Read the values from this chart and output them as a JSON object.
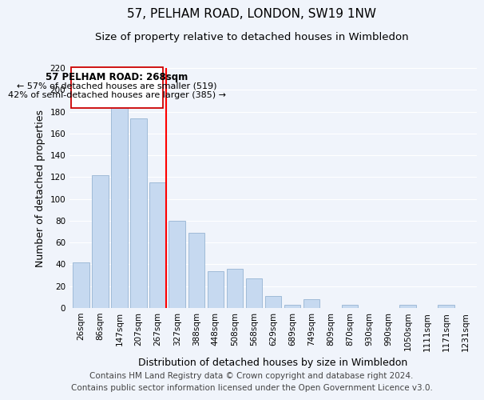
{
  "title": "57, PELHAM ROAD, LONDON, SW19 1NW",
  "subtitle": "Size of property relative to detached houses in Wimbledon",
  "xlabel": "Distribution of detached houses by size in Wimbledon",
  "ylabel": "Number of detached properties",
  "categories": [
    "26sqm",
    "86sqm",
    "147sqm",
    "207sqm",
    "267sqm",
    "327sqm",
    "388sqm",
    "448sqm",
    "508sqm",
    "568sqm",
    "629sqm",
    "689sqm",
    "749sqm",
    "809sqm",
    "870sqm",
    "930sqm",
    "990sqm",
    "1050sqm",
    "1111sqm",
    "1171sqm",
    "1231sqm"
  ],
  "values": [
    42,
    122,
    184,
    174,
    115,
    80,
    69,
    34,
    36,
    27,
    11,
    3,
    8,
    0,
    3,
    0,
    0,
    3,
    0,
    3,
    0
  ],
  "bar_color": "#c6d9f0",
  "bar_edge_color": "#a0bbd8",
  "red_line_index": 4,
  "annotation_title": "57 PELHAM ROAD: 268sqm",
  "annotation_line1": "← 57% of detached houses are smaller (519)",
  "annotation_line2": "42% of semi-detached houses are larger (385) →",
  "ylim": [
    0,
    220
  ],
  "yticks": [
    0,
    20,
    40,
    60,
    80,
    100,
    120,
    140,
    160,
    180,
    200,
    220
  ],
  "footer1": "Contains HM Land Registry data © Crown copyright and database right 2024.",
  "footer2": "Contains public sector information licensed under the Open Government Licence v3.0.",
  "bg_color": "#f0f4fb",
  "plot_bg_color": "#f0f4fb",
  "grid_color": "#ffffff",
  "annotation_box_color": "#ffffff",
  "annotation_border_color": "#cc0000",
  "title_fontsize": 11,
  "subtitle_fontsize": 9.5,
  "axis_label_fontsize": 9,
  "tick_fontsize": 7.5,
  "annotation_fontsize": 8.5,
  "footer_fontsize": 7.5
}
